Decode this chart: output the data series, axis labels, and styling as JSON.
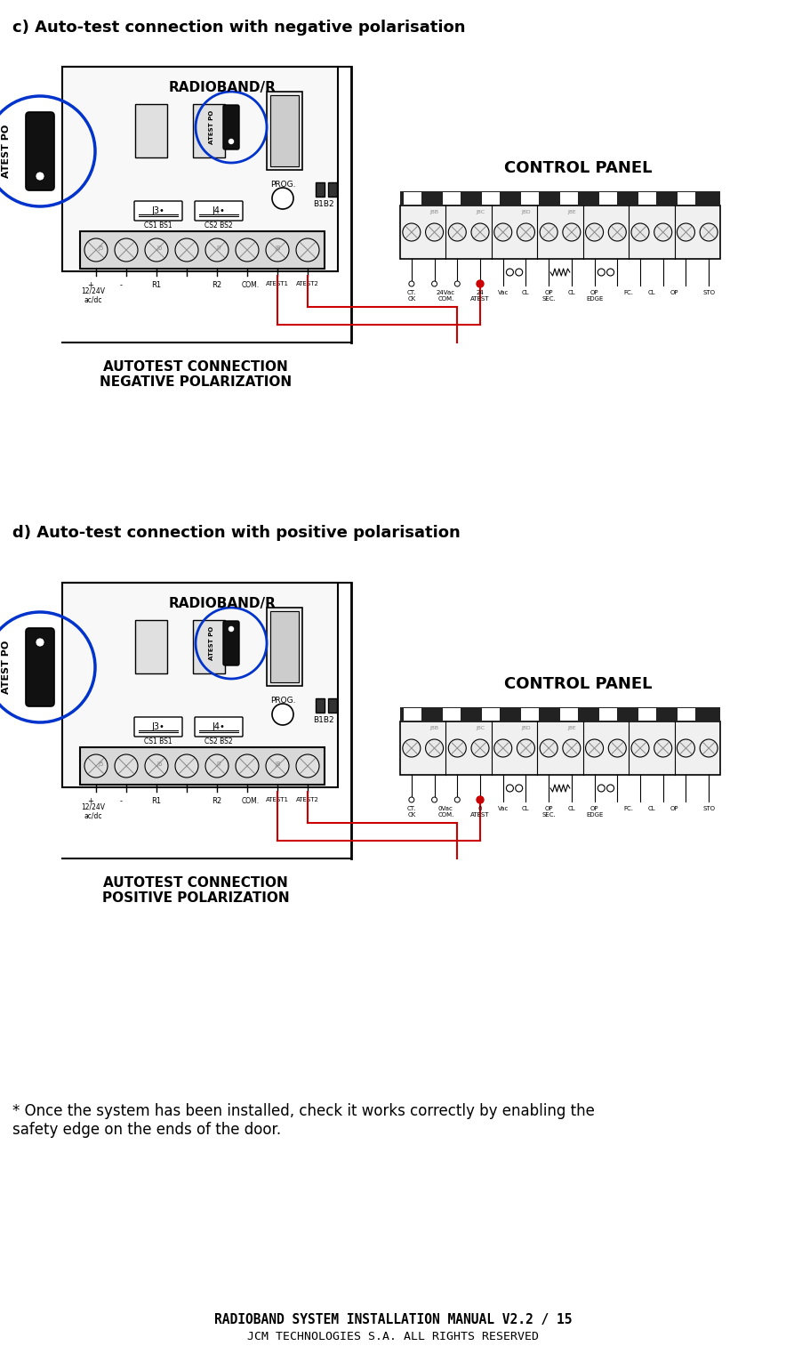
{
  "title_c": "c) Auto-test connection with negative polarisation",
  "title_d": "d) Auto-test connection with positive polarisation",
  "label_radioband": "RADIOBAND/R",
  "label_control_panel": "CONTROL PANEL",
  "label_autotest_neg": "AUTOTEST CONNECTION\nNEGATIVE POLARIZATION",
  "label_autotest_pos": "AUTOTEST CONNECTION\nPOSITIVE POLARIZATION",
  "label_atest_po": "ATEST PO",
  "label_prog": "PROG.",
  "label_b1b2": "B1B2",
  "label_j3": "J3•",
  "label_j4": "J4•",
  "label_cs1bs1": "CS1 BS1",
  "label_cs2bs2": "CS2 BS2",
  "label_1224v": "12/24V\nac/dc",
  "label_r1": "R1",
  "label_r2": "R2",
  "label_com": "COM.",
  "label_atest1": "ATEST1",
  "label_atest2": "ATEST2",
  "footer_line1": "RADIOBAND SYSTEM INSTALLATION MANUAL V2.2 / 15",
  "footer_line2": "JCM TECHNOLOGIES S.A. ALL RIGHTS RESERVED",
  "note_text": "* Once the system has been installed, check it works correctly by enabling the\nsafety edge on the ends of the door.",
  "blue": "#0033CC",
  "red": "#CC0000",
  "black": "#000000",
  "white": "#FFFFFF",
  "bg": "#FFFFFF",
  "lgray": "#CCCCCC",
  "dgray": "#333333",
  "mgray": "#888888"
}
